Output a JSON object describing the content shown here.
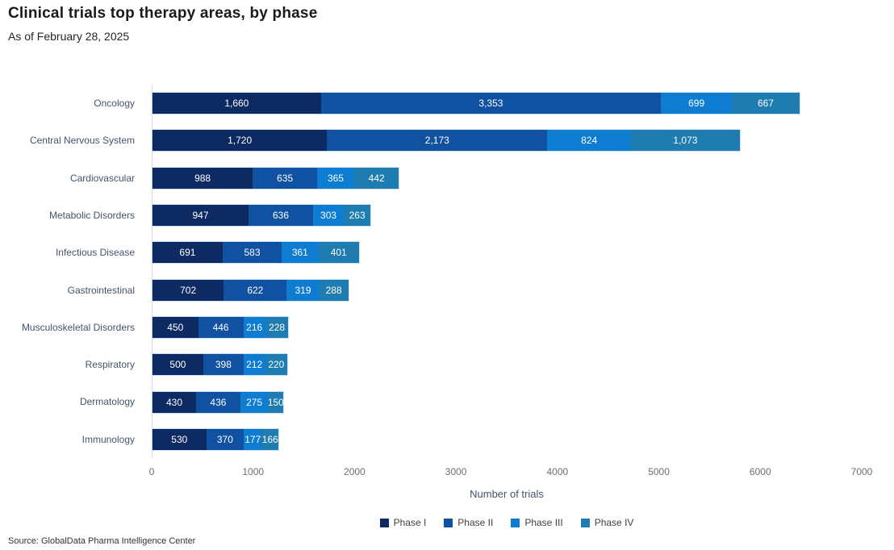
{
  "header": {
    "title": "Clinical trials top therapy areas, by phase",
    "subtitle": "As of February 28, 2025"
  },
  "chart_data": {
    "type": "bar",
    "orientation": "horizontal-stacked",
    "title": "Clinical trials top therapy areas, by phase",
    "subtitle": "As of February 28, 2025",
    "categories": [
      "Oncology",
      "Central Nervous System",
      "Cardiovascular",
      "Metabolic Disorders",
      "Infectious Disease",
      "Gastrointestinal",
      "Musculoskeletal Disorders",
      "Respiratory",
      "Dermatology",
      "Immunology"
    ],
    "series": [
      {
        "name": "Phase I",
        "color": "#0e2a63",
        "values": [
          1660,
          1720,
          988,
          947,
          691,
          702,
          450,
          500,
          430,
          530
        ]
      },
      {
        "name": "Phase II",
        "color": "#1151a2",
        "values": [
          3353,
          2173,
          635,
          636,
          583,
          622,
          446,
          398,
          436,
          370
        ]
      },
      {
        "name": "Phase III",
        "color": "#0e7dd1",
        "values": [
          699,
          824,
          365,
          303,
          361,
          319,
          216,
          212,
          275,
          177
        ]
      },
      {
        "name": "Phase IV",
        "color": "#1e7cb0",
        "values": [
          667,
          1073,
          442,
          263,
          401,
          288,
          228,
          220,
          150,
          166
        ]
      }
    ],
    "xlabel": "Number of trials",
    "ylabel": "",
    "xlim": [
      0,
      7000
    ],
    "xticks": [
      0,
      1000,
      2000,
      3000,
      4000,
      5000,
      6000,
      7000
    ],
    "grid": false,
    "legend_position": "bottom",
    "value_labels": "inside-white"
  },
  "footer": {
    "source": "Source: GlobalData Pharma Intelligence Center"
  }
}
